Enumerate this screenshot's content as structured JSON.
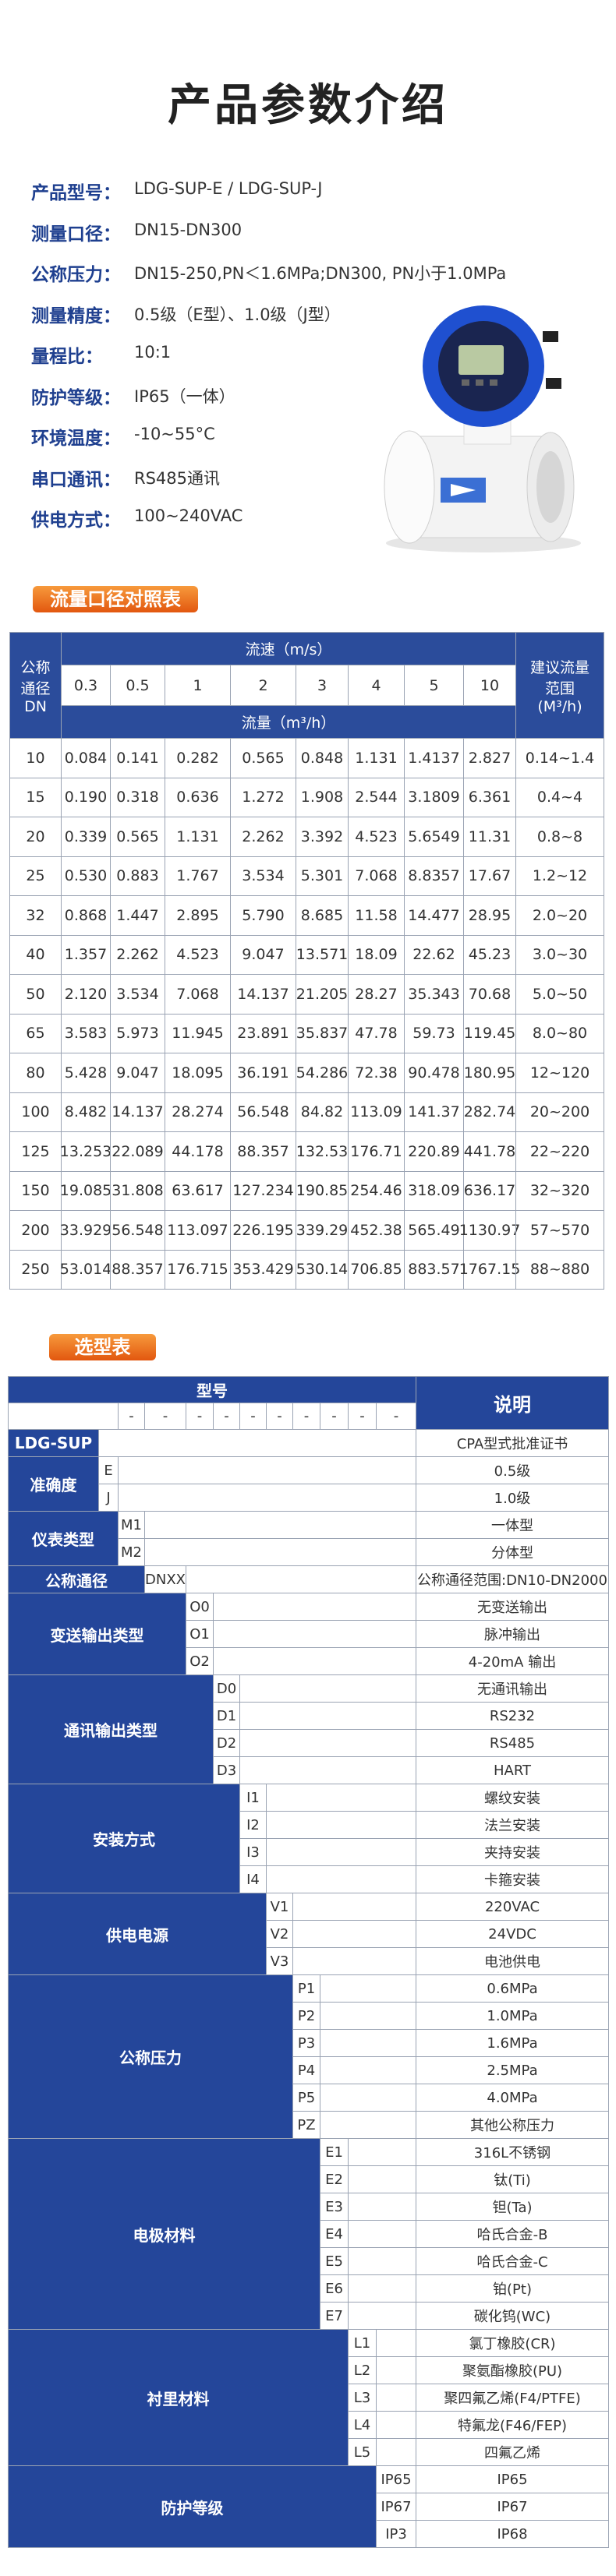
{
  "header": {
    "title": "产品参数介绍"
  },
  "specs": [
    {
      "label": "产品型号：",
      "value": "LDG-SUP-E / LDG-SUP-J"
    },
    {
      "label": "测量口径：",
      "value": "DN15-DN300"
    },
    {
      "label": "公称压力：",
      "value": "DN15-250,PN＜1.6MPa;DN300, PN小于1.0MPa"
    },
    {
      "label": "测量精度：",
      "value": "0.5级（E型）、1.0级（J型）"
    },
    {
      "label": "量程比：",
      "value": "10:1"
    },
    {
      "label": "防护等级：",
      "value": "IP65（一体）"
    },
    {
      "label": "环境温度：",
      "value": "-10~55°C"
    },
    {
      "label": "串口通讯：",
      "value": "RS485通讯"
    },
    {
      "label": "供电方式：",
      "value": "100~240VAC"
    }
  ],
  "flow_table": {
    "title": "流量口径对照表",
    "dn_header": "公称通径DN",
    "speed_header": "流速（m/s）",
    "speeds": [
      "0.3",
      "0.5",
      "1",
      "2",
      "3",
      "4",
      "5",
      "10"
    ],
    "flow_header": "流量（m³/h）",
    "range_header": "建议流量范围(M³/h)",
    "rows": [
      [
        "10",
        "0.084",
        "0.141",
        "0.282",
        "0.565",
        "0.848",
        "1.131",
        "1.4137",
        "2.827",
        "0.14~1.4"
      ],
      [
        "15",
        "0.190",
        "0.318",
        "0.636",
        "1.272",
        "1.908",
        "2.544",
        "3.1809",
        "6.361",
        "0.4~4"
      ],
      [
        "20",
        "0.339",
        "0.565",
        "1.131",
        "2.262",
        "3.392",
        "4.523",
        "5.6549",
        "11.31",
        "0.8~8"
      ],
      [
        "25",
        "0.530",
        "0.883",
        "1.767",
        "3.534",
        "5.301",
        "7.068",
        "8.8357",
        "17.67",
        "1.2~12"
      ],
      [
        "32",
        "0.868",
        "1.447",
        "2.895",
        "5.790",
        "8.685",
        "11.58",
        "14.477",
        "28.95",
        "2.0~20"
      ],
      [
        "40",
        "1.357",
        "2.262",
        "4.523",
        "9.047",
        "13.571",
        "18.09",
        "22.62",
        "45.23",
        "3.0~30"
      ],
      [
        "50",
        "2.120",
        "3.534",
        "7.068",
        "14.137",
        "21.205",
        "28.27",
        "35.343",
        "70.68",
        "5.0~50"
      ],
      [
        "65",
        "3.583",
        "5.973",
        "11.945",
        "23.891",
        "35.837",
        "47.78",
        "59.73",
        "119.45",
        "8.0~80"
      ],
      [
        "80",
        "5.428",
        "9.047",
        "18.095",
        "36.191",
        "54.286",
        "72.38",
        "90.478",
        "180.95",
        "12~120"
      ],
      [
        "100",
        "8.482",
        "14.137",
        "28.274",
        "56.548",
        "84.82",
        "113.09",
        "141.37",
        "282.74",
        "20~200"
      ],
      [
        "125",
        "13.253",
        "22.089",
        "44.178",
        "88.357",
        "132.53",
        "176.71",
        "220.89",
        "441.78",
        "22~220"
      ],
      [
        "150",
        "19.085",
        "31.808",
        "63.617",
        "127.234",
        "190.85",
        "254.46",
        "318.09",
        "636.17",
        "32~320"
      ],
      [
        "200",
        "33.929",
        "56.548",
        "113.097",
        "226.195",
        "339.29",
        "452.38",
        "565.49",
        "1130.97",
        "57~570"
      ],
      [
        "250",
        "53.014",
        "88.357",
        "176.715",
        "353.429",
        "530.14",
        "706.85",
        "883.57",
        "1767.15",
        "88~880"
      ]
    ]
  },
  "selection_table": {
    "title": "选型表",
    "model_header": "型号",
    "desc_header": "说明",
    "dashes": [
      "-",
      "-",
      "-",
      "-",
      "-",
      "-",
      "-",
      "-",
      "-",
      "-"
    ],
    "groups": [
      {
        "label": "LDG-SUP",
        "rows": [
          {
            "desc": "CPA型式批准证书"
          }
        ]
      },
      {
        "label": "准确度",
        "rows": [
          {
            "code": "E",
            "desc": "0.5级"
          },
          {
            "code": "J",
            "desc": "1.0级"
          }
        ]
      },
      {
        "label": "仪表类型",
        "rows": [
          {
            "code": "M1",
            "desc": "一体型"
          },
          {
            "code": "M2",
            "desc": "分体型"
          }
        ]
      },
      {
        "label": "公称通径",
        "rows": [
          {
            "code": "DNXX",
            "desc": "公称通径范围:DN10-DN2000"
          }
        ]
      },
      {
        "label": "变送输出类型",
        "rows": [
          {
            "code": "O0",
            "desc": "无变送输出"
          },
          {
            "code": "O1",
            "desc": "脉冲输出"
          },
          {
            "code": "O2",
            "desc": "4-20mA 输出"
          }
        ]
      },
      {
        "label": "通讯输出类型",
        "rows": [
          {
            "code": "D0",
            "desc": "无通讯输出"
          },
          {
            "code": "D1",
            "desc": "RS232"
          },
          {
            "code": "D2",
            "desc": "RS485"
          },
          {
            "code": "D3",
            "desc": "HART"
          }
        ]
      },
      {
        "label": "安装方式",
        "rows": [
          {
            "code": "I1",
            "desc": "螺纹安装"
          },
          {
            "code": "I2",
            "desc": "法兰安装"
          },
          {
            "code": "I3",
            "desc": "夹持安装"
          },
          {
            "code": "I4",
            "desc": "卡箍安装"
          }
        ]
      },
      {
        "label": "供电电源",
        "rows": [
          {
            "code": "V1",
            "desc": "220VAC"
          },
          {
            "code": "V2",
            "desc": "24VDC"
          },
          {
            "code": "V3",
            "desc": "电池供电"
          }
        ]
      },
      {
        "label": "公称压力",
        "rows": [
          {
            "code": "P1",
            "desc": "0.6MPa"
          },
          {
            "code": "P2",
            "desc": "1.0MPa"
          },
          {
            "code": "P3",
            "desc": "1.6MPa"
          },
          {
            "code": "P4",
            "desc": "2.5MPa"
          },
          {
            "code": "P5",
            "desc": "4.0MPa"
          },
          {
            "code": "PZ",
            "desc": "其他公称压力"
          }
        ]
      },
      {
        "label": "电极材料",
        "rows": [
          {
            "code": "E1",
            "desc": "316L不锈钢"
          },
          {
            "code": "E2",
            "desc": "钛(Ti)"
          },
          {
            "code": "E3",
            "desc": "钽(Ta)"
          },
          {
            "code": "E4",
            "desc": "哈氏合金-B"
          },
          {
            "code": "E5",
            "desc": "哈氏合金-C"
          },
          {
            "code": "E6",
            "desc": "铂(Pt)"
          },
          {
            "code": "E7",
            "desc": "碳化钨(WC)"
          }
        ]
      },
      {
        "label": "衬里材料",
        "rows": [
          {
            "code": "L1",
            "desc": "氯丁橡胶(CR)"
          },
          {
            "code": "L2",
            "desc": "聚氨酯橡胶(PU)"
          },
          {
            "code": "L3",
            "desc": "聚四氟乙烯(F4/PTFE)"
          },
          {
            "code": "L4",
            "desc": "特氟龙(F46/FEP)"
          },
          {
            "code": "L5",
            "desc": "四氟乙烯"
          }
        ]
      },
      {
        "label": "防护等级",
        "rows": [
          {
            "code": "IP65",
            "desc": "IP65"
          },
          {
            "code": "IP67",
            "desc": "IP67"
          },
          {
            "code": "IP3",
            "desc": "IP68"
          }
        ]
      }
    ]
  }
}
